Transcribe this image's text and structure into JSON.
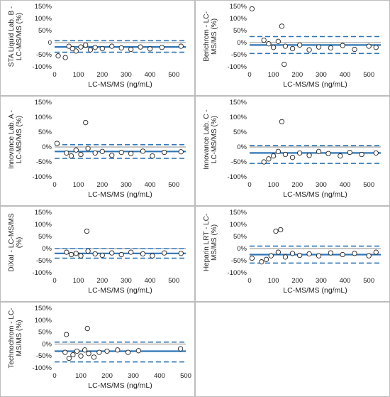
{
  "layout_note": "",
  "chart_data": [
    {
      "type": "scatter",
      "ylabel_lines": [
        "STA Liquid Lab. B -",
        "LC-MS/MS (%)"
      ],
      "xlabel": "LC-MS/MS (ng/mL)",
      "xlim": [
        0,
        550
      ],
      "xticks": [
        0,
        100,
        200,
        300,
        400,
        500
      ],
      "ylim": [
        -100,
        150
      ],
      "yticks": [
        150,
        100,
        50,
        0,
        -50,
        -100
      ],
      "ytick_labels": [
        "150%",
        "100%",
        "50%",
        "0",
        "-50%",
        "-100%"
      ],
      "mean": -18,
      "loa": [
        8,
        -40
      ],
      "points": [
        [
          15,
          -55
        ],
        [
          45,
          -62
        ],
        [
          60,
          -15
        ],
        [
          75,
          -25
        ],
        [
          90,
          -35
        ],
        [
          110,
          -18
        ],
        [
          130,
          -10
        ],
        [
          150,
          -30
        ],
        [
          170,
          -20
        ],
        [
          200,
          -25
        ],
        [
          240,
          -15
        ],
        [
          280,
          -22
        ],
        [
          320,
          -28
        ],
        [
          360,
          -18
        ],
        [
          400,
          -26
        ],
        [
          450,
          -20
        ],
        [
          530,
          -15
        ]
      ]
    },
    {
      "type": "scatter",
      "ylabel_lines": [
        "Berichrom - LC-",
        "MS/MS (%)"
      ],
      "xlabel": "LC-MS/MS (ng/mL)",
      "xlim": [
        0,
        550
      ],
      "xticks": [
        0,
        100,
        200,
        300,
        400,
        500
      ],
      "ylim": [
        -100,
        150
      ],
      "yticks": [
        150,
        100,
        50,
        0,
        -50,
        -100
      ],
      "ytick_labels": [
        "150%",
        "100%",
        "50%",
        "0%",
        "-50%",
        "-100%"
      ],
      "mean": -10,
      "loa": [
        25,
        -45
      ],
      "points": [
        [
          10,
          140
        ],
        [
          135,
          68
        ],
        [
          145,
          -90
        ],
        [
          60,
          10
        ],
        [
          80,
          -5
        ],
        [
          100,
          -20
        ],
        [
          120,
          5
        ],
        [
          150,
          -15
        ],
        [
          180,
          -25
        ],
        [
          210,
          -10
        ],
        [
          250,
          -30
        ],
        [
          290,
          -18
        ],
        [
          340,
          -22
        ],
        [
          390,
          -12
        ],
        [
          440,
          -28
        ],
        [
          500,
          -15
        ],
        [
          530,
          -20
        ]
      ]
    },
    {
      "type": "scatter",
      "ylabel_lines": [
        "Innovance Lab. A -",
        "LC-MS/MS (%)"
      ],
      "xlabel": "LC-MS/MS (ng/mL)",
      "xlim": [
        0,
        550
      ],
      "xticks": [
        0,
        100,
        200,
        300,
        400,
        500
      ],
      "ylim": [
        -100,
        150
      ],
      "yticks": [
        150,
        100,
        50,
        0,
        -50,
        -100
      ],
      "ytick_labels": [
        "150%",
        "100%",
        "50%",
        "0%",
        "-50%",
        "-100%"
      ],
      "mean": -15,
      "loa": [
        8,
        -38
      ],
      "points": [
        [
          10,
          12
        ],
        [
          130,
          82
        ],
        [
          50,
          -20
        ],
        [
          70,
          -30
        ],
        [
          90,
          -10
        ],
        [
          110,
          -25
        ],
        [
          140,
          -5
        ],
        [
          170,
          -20
        ],
        [
          200,
          -15
        ],
        [
          240,
          -28
        ],
        [
          280,
          -18
        ],
        [
          320,
          -22
        ],
        [
          370,
          -14
        ],
        [
          410,
          -30
        ],
        [
          460,
          -18
        ],
        [
          530,
          -16
        ]
      ]
    },
    {
      "type": "scatter",
      "ylabel_lines": [
        "Innovance Lab. C -",
        "LC-MS/MS (%)"
      ],
      "xlabel": "LC-MS/MS (ng/mL)",
      "xlim": [
        0,
        550
      ],
      "xticks": [
        0,
        100,
        200,
        300,
        400,
        500
      ],
      "ylim": [
        -100,
        150
      ],
      "yticks": [
        150,
        100,
        50,
        0,
        -50,
        -100
      ],
      "ytick_labels": [
        "150%",
        "100%",
        "50%",
        "0%",
        "-50%",
        "-100%"
      ],
      "mean": -20,
      "loa": [
        5,
        -55
      ],
      "points": [
        [
          135,
          85
        ],
        [
          60,
          -50
        ],
        [
          80,
          -40
        ],
        [
          100,
          -30
        ],
        [
          120,
          -15
        ],
        [
          150,
          -25
        ],
        [
          180,
          -35
        ],
        [
          210,
          -20
        ],
        [
          250,
          -28
        ],
        [
          290,
          -15
        ],
        [
          330,
          -22
        ],
        [
          380,
          -30
        ],
        [
          420,
          -18
        ],
        [
          470,
          -25
        ],
        [
          530,
          -20
        ]
      ]
    },
    {
      "type": "scatter",
      "ylabel_lines": [
        "DiXaI - LC-MS/MS",
        "(%)"
      ],
      "xlabel": "LC-MS/MS (ng/mL)",
      "xlim": [
        0,
        550
      ],
      "xticks": [
        0,
        100,
        200,
        300,
        400,
        500
      ],
      "ylim": [
        -100,
        150
      ],
      "yticks": [
        150,
        100,
        50,
        0,
        -50,
        -100
      ],
      "ytick_labels": [
        "150%",
        "100%",
        "50%",
        "0%",
        "-50%",
        "-100%"
      ],
      "mean": -20,
      "loa": [
        0,
        -40
      ],
      "points": [
        [
          135,
          72
        ],
        [
          50,
          -15
        ],
        [
          70,
          -25
        ],
        [
          90,
          -20
        ],
        [
          110,
          -30
        ],
        [
          140,
          -10
        ],
        [
          170,
          -22
        ],
        [
          200,
          -28
        ],
        [
          240,
          -18
        ],
        [
          280,
          -25
        ],
        [
          320,
          -15
        ],
        [
          370,
          -22
        ],
        [
          410,
          -30
        ],
        [
          460,
          -18
        ],
        [
          530,
          -20
        ]
      ]
    },
    {
      "type": "scatter",
      "ylabel_lines": [
        "Heparin LRT - LC-",
        "MS/MS (%)"
      ],
      "xlabel": "LC-MS/MS (ng/mL)",
      "xlim": [
        0,
        550
      ],
      "xticks": [
        0,
        100,
        200,
        300,
        400,
        500
      ],
      "ylim": [
        -100,
        150
      ],
      "yticks": [
        150,
        100,
        50,
        0,
        -50,
        -100
      ],
      "ytick_labels": [
        "150%",
        "100%",
        "50%",
        "0%",
        "-50%",
        "-100%"
      ],
      "mean": -25,
      "loa": [
        10,
        -60
      ],
      "points": [
        [
          110,
          72
        ],
        [
          130,
          78
        ],
        [
          10,
          -40
        ],
        [
          50,
          -55
        ],
        [
          70,
          -45
        ],
        [
          90,
          -30
        ],
        [
          120,
          -15
        ],
        [
          150,
          -35
        ],
        [
          180,
          -20
        ],
        [
          210,
          -28
        ],
        [
          250,
          -22
        ],
        [
          290,
          -30
        ],
        [
          340,
          -18
        ],
        [
          390,
          -25
        ],
        [
          440,
          -20
        ],
        [
          500,
          -30
        ],
        [
          530,
          -15
        ]
      ]
    },
    {
      "type": "scatter",
      "ylabel_lines": [
        "Technochrom - LC-",
        "MS/MS (%)"
      ],
      "xlabel": "LC-MS/MS (ng/mL)",
      "xlim": [
        0,
        500
      ],
      "xticks": [
        0,
        100,
        200,
        300,
        400,
        500
      ],
      "ylim": [
        -100,
        150
      ],
      "yticks": [
        150,
        100,
        50,
        0,
        -50,
        -100
      ],
      "ytick_labels": [
        "150%",
        "100%",
        "50%",
        "0%",
        "-50%",
        "-100%"
      ],
      "mean": -30,
      "loa": [
        8,
        -75
      ],
      "points": [
        [
          45,
          40
        ],
        [
          125,
          65
        ],
        [
          40,
          -35
        ],
        [
          55,
          -60
        ],
        [
          70,
          -45
        ],
        [
          85,
          -30
        ],
        [
          100,
          -50
        ],
        [
          115,
          -25
        ],
        [
          130,
          -40
        ],
        [
          150,
          -55
        ],
        [
          170,
          -35
        ],
        [
          200,
          -30
        ],
        [
          240,
          -25
        ],
        [
          280,
          -35
        ],
        [
          320,
          -28
        ],
        [
          480,
          -20
        ]
      ]
    }
  ]
}
